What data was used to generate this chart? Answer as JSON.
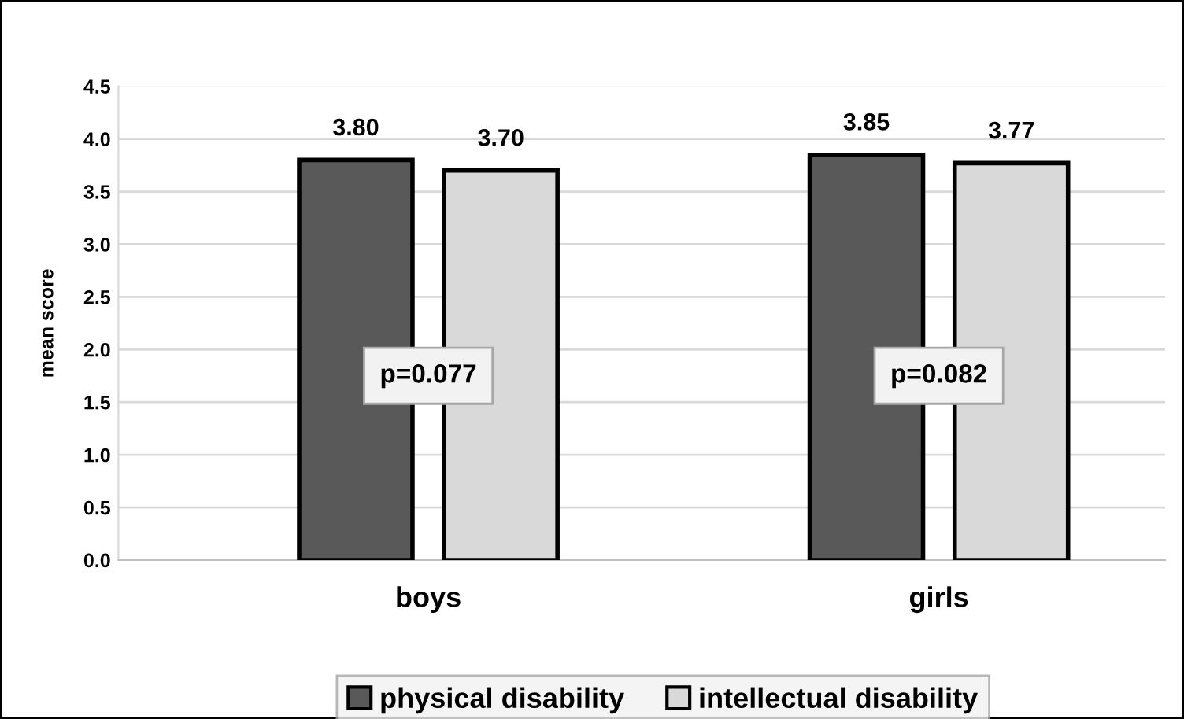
{
  "chart_data": {
    "type": "bar",
    "ylabel": "mean score",
    "categories": [
      "boys",
      "girls"
    ],
    "series": [
      {
        "name": "physical disability",
        "color": "#595959",
        "values": [
          3.8,
          3.85
        ],
        "value_labels": [
          "3.80",
          "3.85"
        ]
      },
      {
        "name": "intellectual disability",
        "color": "#d9d9d9",
        "values": [
          3.7,
          3.77
        ],
        "value_labels": [
          "3.70",
          "3.77"
        ]
      }
    ],
    "ylim": [
      0,
      4.5
    ],
    "yticks": [
      "0.0",
      "0.5",
      "1.0",
      "1.5",
      "2.0",
      "2.5",
      "3.0",
      "3.5",
      "4.0",
      "4.5"
    ],
    "annotations": [
      "p=0.077",
      "p=0.082"
    ],
    "grid": "y",
    "legend": "bottom"
  }
}
